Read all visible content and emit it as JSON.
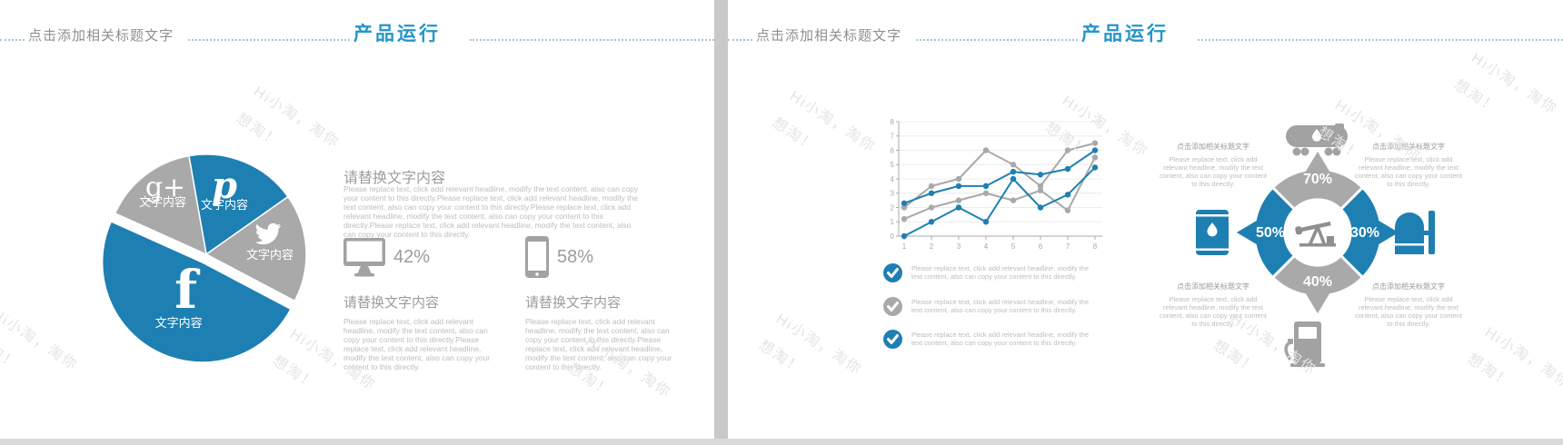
{
  "watermark": "Hi小淘，淘你想淘！",
  "accent_color": "#1e7fb2",
  "gray_color": "#a9a9a9",
  "slides": {
    "left": {
      "header": {
        "title": "点击添加相关标题文字",
        "section": "产品运行"
      },
      "pie": {
        "start_angle": 350,
        "slices": [
          {
            "name": "pinterest",
            "icon": "pinterest-icon",
            "label": "文字内容",
            "value": 18,
            "color": "#1e7fb2",
            "exploded": false
          },
          {
            "name": "twitter",
            "icon": "twitter-icon",
            "label": "文字内容",
            "value": 17.5,
            "color": "#a9a9a9",
            "exploded": false
          },
          {
            "name": "facebook",
            "icon": "facebook-icon",
            "label": "文字内容",
            "value": 49,
            "color": "#1e7fb2",
            "exploded": true
          },
          {
            "name": "googleplus",
            "icon": "googleplus-icon",
            "label": "文字内容",
            "value": 15.5,
            "color": "#a9a9a9",
            "exploded": false
          }
        ]
      },
      "intro": {
        "heading": "请替换文字内容",
        "body": "Please replace text, click add relevant headline, modify the text content, also can copy your content to this directly.Please replace text, click add relevant headline, modify the text content, also can copy your content to this directly.Please replace text, click add relevant headline, modify the text content, also can copy your content to this directly.Please replace text, click add relevant headline, modify the text content, also can copy your content to this directly."
      },
      "stats": [
        {
          "icon": "desktop-icon",
          "value": "42%"
        },
        {
          "icon": "phone-icon",
          "value": "58%"
        }
      ],
      "columns": [
        {
          "heading": "请替换文字内容",
          "body": "Please replace text, click add relevant headline, modify the text content, also can copy your content to this directly.Please replace text, click add relevant headline, modify the text content, also can copy your content to this directly."
        },
        {
          "heading": "请替换文字内容",
          "body": "Please replace text, click add relevant headline, modify the text content, also can copy your content to this directly.Please replace text, click add relevant headline, modify the text content, also can copy your content to this directly."
        }
      ]
    },
    "right": {
      "header": {
        "title": "点击添加相关标题文字",
        "section": "产品运行"
      },
      "bullets": [
        {
          "color": "#1e7fb2",
          "icon": "check-circle-icon",
          "text": "Please replace text, click add relevant headline, modify the text content, also can copy your content to this directly."
        },
        {
          "color": "#a9a9a9",
          "icon": "check-circle-icon",
          "text": "Please replace text, click add relevant headline, modify the text content, also can copy your content to this directly."
        },
        {
          "color": "#1e7fb2",
          "icon": "check-circle-icon",
          "text": "Please replace text, click add relevant headline, modify the text content, also can copy your content to this directly."
        }
      ],
      "donut": {
        "center_icon": "pumpjack-icon",
        "segments": [
          {
            "pos": "top",
            "value": "70%",
            "color": "#a9a9a9",
            "icon": "tank-truck-icon"
          },
          {
            "pos": "right",
            "value": "30%",
            "color": "#1e7fb2",
            "icon": "storage-tank-icon"
          },
          {
            "pos": "bottom",
            "value": "40%",
            "color": "#a9a9a9",
            "icon": "fuel-pump-icon"
          },
          {
            "pos": "left",
            "value": "50%",
            "color": "#1e7fb2",
            "icon": "oil-barrel-icon"
          }
        ]
      },
      "notes": [
        {
          "heading": "点击添加相关标题文字",
          "body": "Please replace text, click add relevant headline, modify the text content, also can copy your content to this directly."
        },
        {
          "heading": "点击添加相关标题文字",
          "body": "Please replace text, click add relevant headline, modify the text content, also can copy your content to this directly."
        },
        {
          "heading": "点击添加相关标题文字",
          "body": "Please replace text, click add relevant headline, modify the text content, also can copy your content to this directly."
        },
        {
          "heading": "点击添加相关标题文字",
          "body": "Please replace text, click add relevant headline, modify the text content, also can copy your content to this directly."
        }
      ]
    }
  },
  "chart_data": {
    "type": "line",
    "x": [
      1,
      2,
      3,
      4,
      5,
      6,
      7,
      8
    ],
    "series": [
      {
        "name": "gray-series-1",
        "color": "#a9a9a9",
        "values": [
          2,
          3.5,
          4,
          6,
          5,
          3.5,
          6,
          6.5
        ]
      },
      {
        "name": "gray-series-2",
        "color": "#a9a9a9",
        "values": [
          1.2,
          2,
          2.5,
          3,
          2.5,
          3.2,
          1.8,
          5.5
        ]
      },
      {
        "name": "blue-series-1",
        "color": "#1e7fb2",
        "values": [
          2.3,
          3,
          3.5,
          3.5,
          4.5,
          4.3,
          4.7,
          6
        ]
      },
      {
        "name": "blue-series-2",
        "color": "#1e7fb2",
        "values": [
          0,
          1,
          2,
          1,
          4,
          2,
          2.9,
          4.8
        ]
      }
    ],
    "ylim": [
      0,
      8
    ],
    "yticks": [
      0,
      1,
      2,
      3,
      4,
      5,
      6,
      7,
      8
    ],
    "grid": true,
    "legend": false,
    "title": "",
    "xlabel": "",
    "ylabel": ""
  }
}
